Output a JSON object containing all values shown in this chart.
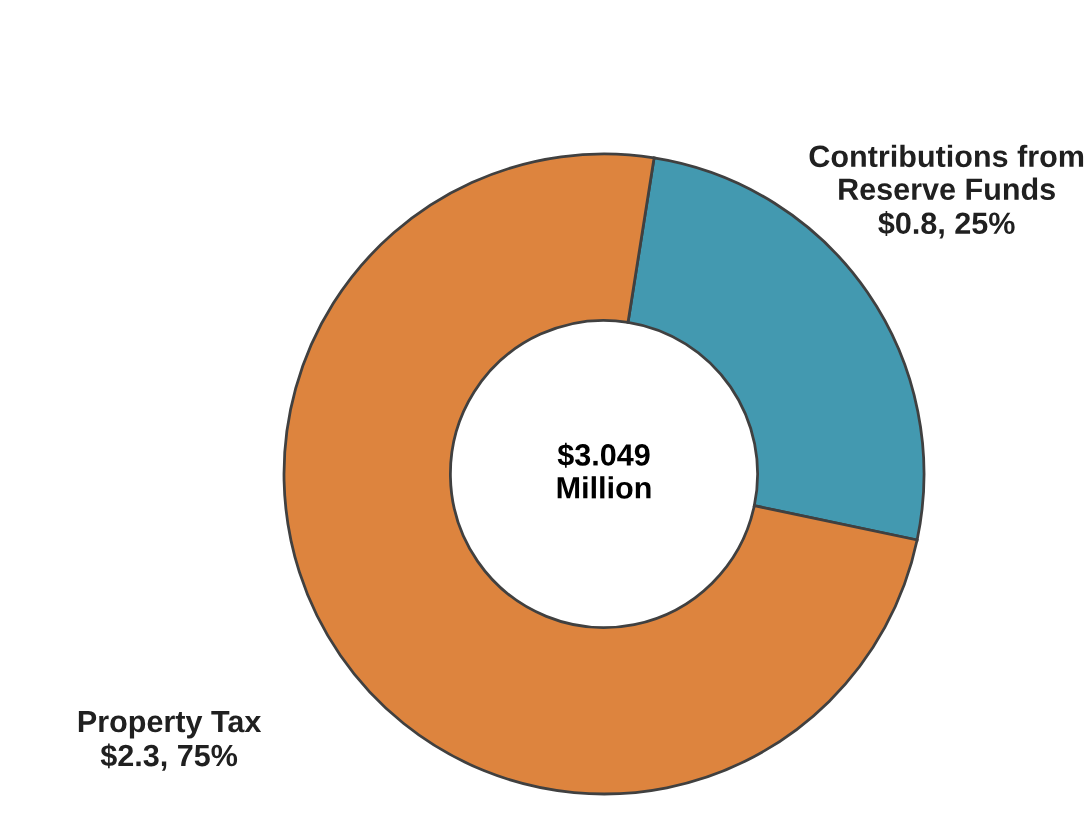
{
  "chart_data": {
    "type": "donut",
    "categories": [
      "Contributions from Reserve Funds",
      "Property Tax"
    ],
    "values": [
      0.8,
      2.3
    ],
    "value_labels": [
      "$0.8, 25%",
      "$2.3, 75%"
    ],
    "colors": [
      "#4399b0",
      "#dd843e"
    ],
    "annotations": [
      "$3.049 Million"
    ],
    "legend": false
  }
}
